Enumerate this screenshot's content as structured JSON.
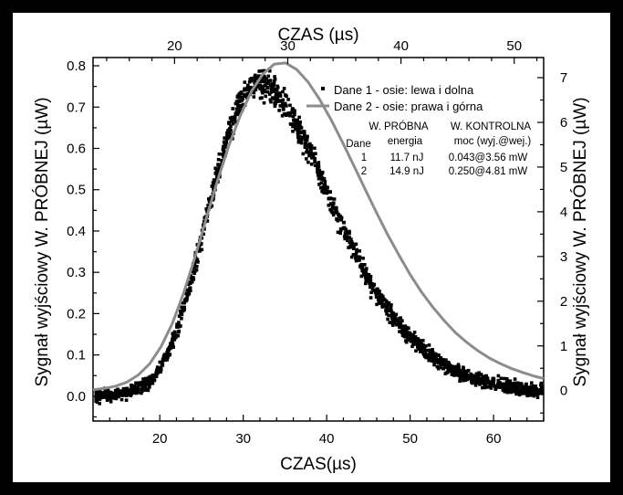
{
  "chart_data": {
    "type": "scatter",
    "xlabel_bottom": "CZAS(µs)",
    "xlabel_top": "CZAS (µs)",
    "ylabel_left": "Sygnał wyjściowy W. PRÓBNEJ (µW)",
    "ylabel_right": "Sygnał wyjściowy W. PRÓBNEJ (µW)",
    "xlim_bottom": [
      12,
      66
    ],
    "xlim_top": [
      12.8,
      52.6
    ],
    "ylim_left": [
      -0.06,
      0.82
    ],
    "ylim_right": [
      -0.68,
      7.45
    ],
    "xticks_bottom": [
      20,
      30,
      40,
      50,
      60
    ],
    "xticks_top": [
      20,
      30,
      40,
      50
    ],
    "yticks_left": [
      0.0,
      0.1,
      0.2,
      0.3,
      0.4,
      0.5,
      0.6,
      0.7,
      0.8
    ],
    "yticks_right": [
      0,
      1,
      2,
      3,
      4,
      5,
      6,
      7
    ],
    "series": [
      {
        "name": "Dane 1 - osie: lewa i dolna",
        "style": "markers",
        "color": "#000000",
        "axes": "left-bottom",
        "x": [
          12,
          13,
          14,
          15,
          16,
          17,
          18,
          19,
          20,
          21,
          22,
          23,
          24,
          25,
          26,
          27,
          28,
          29,
          30,
          31,
          32,
          33,
          34,
          35,
          36,
          37,
          38,
          39,
          40,
          41,
          42,
          43,
          44,
          45,
          46,
          47,
          48,
          49,
          50,
          51,
          52,
          53,
          54,
          55,
          56,
          57,
          58,
          59,
          60,
          61,
          62,
          63,
          64,
          65,
          66
        ],
        "y": [
          0.005,
          0.006,
          0.008,
          0.011,
          0.015,
          0.022,
          0.033,
          0.05,
          0.078,
          0.118,
          0.172,
          0.24,
          0.32,
          0.405,
          0.49,
          0.57,
          0.64,
          0.695,
          0.735,
          0.755,
          0.76,
          0.752,
          0.733,
          0.705,
          0.67,
          0.63,
          0.587,
          0.54,
          0.495,
          0.448,
          0.402,
          0.358,
          0.318,
          0.281,
          0.247,
          0.217,
          0.19,
          0.165,
          0.143,
          0.124,
          0.108,
          0.093,
          0.08,
          0.069,
          0.06,
          0.052,
          0.045,
          0.039,
          0.034,
          0.03,
          0.026,
          0.023,
          0.02,
          0.018,
          0.016
        ]
      },
      {
        "name": "Dane 2 - osie: prawa i górna",
        "style": "line",
        "color": "#8c8c8c",
        "axes": "right-top",
        "x": [
          12.8,
          13.8,
          14.8,
          15.8,
          16.8,
          17.8,
          18.8,
          19.8,
          20.8,
          21.8,
          22.8,
          23.8,
          24.8,
          25.8,
          26.8,
          27.8,
          28.8,
          29.8,
          30.8,
          31.8,
          32.8,
          33.8,
          34.8,
          35.8,
          36.8,
          37.8,
          38.8,
          39.8,
          40.8,
          41.8,
          42.8,
          43.8,
          44.8,
          45.8,
          46.8,
          47.8,
          48.8,
          49.8,
          50.8,
          51.8,
          52.6
        ],
        "y": [
          0.02,
          0.05,
          0.1,
          0.19,
          0.35,
          0.6,
          0.98,
          1.5,
          2.18,
          2.98,
          3.85,
          4.7,
          5.48,
          6.15,
          6.7,
          7.08,
          7.3,
          7.33,
          7.18,
          6.9,
          6.52,
          6.07,
          5.57,
          5.05,
          4.52,
          4.0,
          3.5,
          3.04,
          2.6,
          2.21,
          1.87,
          1.57,
          1.3,
          1.08,
          0.89,
          0.73,
          0.6,
          0.49,
          0.4,
          0.32,
          0.27
        ]
      }
    ],
    "legend": {
      "placement": "top-right",
      "entries": [
        "Dane 1 - osie: lewa i dolna",
        "Dane 2 - osie: prawa i górna"
      ]
    },
    "table": {
      "header_row1": [
        "",
        "W. PRÓBNA",
        "W. KONTROLNA"
      ],
      "header_row2": [
        "Dane",
        "energia",
        "moc (wyj.@wej.)"
      ],
      "rows": [
        [
          "1",
          "11.7 nJ",
          "0.043@3.56 mW"
        ],
        [
          "2",
          "14.9 nJ",
          "0.250@4.81 mW"
        ]
      ]
    }
  }
}
